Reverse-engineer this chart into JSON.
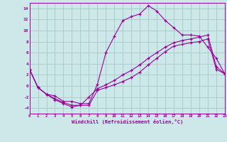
{
  "xlabel": "Windchill (Refroidissement éolien,°C)",
  "background_color": "#cce8e8",
  "grid_color": "#aacccc",
  "line_color": "#990099",
  "x_ticks": [
    0,
    1,
    2,
    3,
    4,
    5,
    6,
    7,
    8,
    9,
    10,
    11,
    12,
    13,
    14,
    15,
    16,
    17,
    18,
    19,
    20,
    21,
    22,
    23
  ],
  "y_ticks": [
    -4,
    -2,
    0,
    2,
    4,
    6,
    8,
    10,
    12,
    14
  ],
  "ylim": [
    -5,
    15
  ],
  "xlim": [
    0,
    23
  ],
  "series1_x": [
    0,
    1,
    2,
    3,
    4,
    5,
    6,
    7,
    8,
    9,
    10,
    11,
    12,
    13,
    14,
    15,
    16,
    17,
    18,
    19,
    20,
    21,
    22,
    23
  ],
  "series1_y": [
    3.0,
    -0.3,
    -1.5,
    -1.8,
    -2.8,
    -2.8,
    -3.2,
    -3.2,
    0.3,
    6.0,
    9.0,
    11.8,
    12.5,
    13.0,
    14.5,
    13.5,
    11.8,
    10.5,
    9.2,
    9.2,
    9.0,
    7.0,
    5.0,
    2.2
  ],
  "series2_x": [
    0,
    1,
    2,
    3,
    4,
    5,
    6,
    7,
    8,
    9,
    10,
    11,
    12,
    13,
    14,
    15,
    16,
    17,
    18,
    19,
    20,
    21,
    22,
    23
  ],
  "series2_y": [
    3.0,
    -0.3,
    -1.5,
    -2.3,
    -3.0,
    -3.5,
    -3.5,
    -2.0,
    -0.5,
    0.2,
    1.0,
    2.0,
    2.8,
    3.8,
    5.0,
    6.0,
    7.0,
    7.8,
    8.2,
    8.5,
    8.8,
    9.2,
    3.5,
    2.2
  ],
  "series3_x": [
    0,
    1,
    2,
    3,
    4,
    5,
    6,
    7,
    8,
    9,
    10,
    11,
    12,
    13,
    14,
    15,
    16,
    17,
    18,
    19,
    20,
    21,
    22,
    23
  ],
  "series3_y": [
    3.0,
    -0.3,
    -1.5,
    -2.5,
    -3.2,
    -3.8,
    -3.5,
    -3.5,
    -0.8,
    -0.3,
    0.2,
    0.8,
    1.5,
    2.5,
    3.8,
    5.0,
    6.2,
    7.2,
    7.5,
    7.8,
    8.0,
    8.5,
    3.0,
    2.2
  ]
}
